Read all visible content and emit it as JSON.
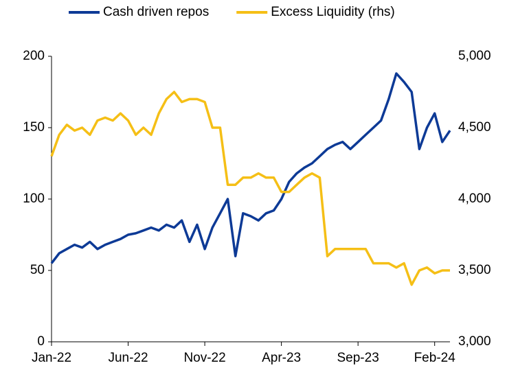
{
  "chart_data": {
    "type": "line",
    "categories": [
      "Jan-22",
      null,
      null,
      null,
      null,
      null,
      null,
      null,
      null,
      null,
      "Jun-22",
      null,
      null,
      null,
      null,
      null,
      null,
      null,
      null,
      null,
      "Nov-22",
      null,
      null,
      null,
      null,
      null,
      null,
      null,
      null,
      null,
      "Apr-23",
      null,
      null,
      null,
      null,
      null,
      null,
      null,
      null,
      null,
      "Sep-23",
      null,
      null,
      null,
      null,
      null,
      null,
      null,
      null,
      null,
      "Feb-24",
      null,
      null
    ],
    "series": [
      {
        "name": "Cash driven repos",
        "color": "#0d3a96",
        "axis": "y",
        "values": [
          55,
          62,
          65,
          68,
          66,
          70,
          65,
          68,
          70,
          72,
          75,
          76,
          78,
          80,
          78,
          82,
          80,
          85,
          70,
          82,
          65,
          80,
          90,
          100,
          60,
          90,
          88,
          85,
          90,
          92,
          100,
          112,
          118,
          122,
          125,
          130,
          135,
          138,
          140,
          135,
          140,
          145,
          150,
          155,
          170,
          188,
          182,
          175,
          135,
          150,
          160,
          140,
          148
        ]
      },
      {
        "name": "Excess Liquidity (rhs)",
        "color": "#f5bf16",
        "axis": "y2",
        "values": [
          4300,
          4450,
          4520,
          4480,
          4500,
          4450,
          4550,
          4570,
          4550,
          4600,
          4550,
          4450,
          4500,
          4450,
          4600,
          4700,
          4750,
          4680,
          4700,
          4700,
          4680,
          4500,
          4500,
          4100,
          4100,
          4150,
          4150,
          4180,
          4150,
          4150,
          4050,
          4050,
          4100,
          4150,
          4180,
          4150,
          3600,
          3650,
          3650,
          3650,
          3650,
          3650,
          3550,
          3550,
          3550,
          3520,
          3550,
          3400,
          3500,
          3520,
          3480,
          3500,
          3500
        ]
      }
    ],
    "ylim": [
      0,
      200
    ],
    "yticks": [
      0,
      50,
      100,
      150,
      200
    ],
    "y2lim": [
      3000,
      5000
    ],
    "y2ticks": [
      {
        "value": 3000,
        "label": "3,000"
      },
      {
        "value": 3500,
        "label": "3,500"
      },
      {
        "value": 4000,
        "label": "4,000"
      },
      {
        "value": 4500,
        "label": "4,500"
      },
      {
        "value": 5000,
        "label": "5,000"
      }
    ],
    "legend": "top"
  }
}
